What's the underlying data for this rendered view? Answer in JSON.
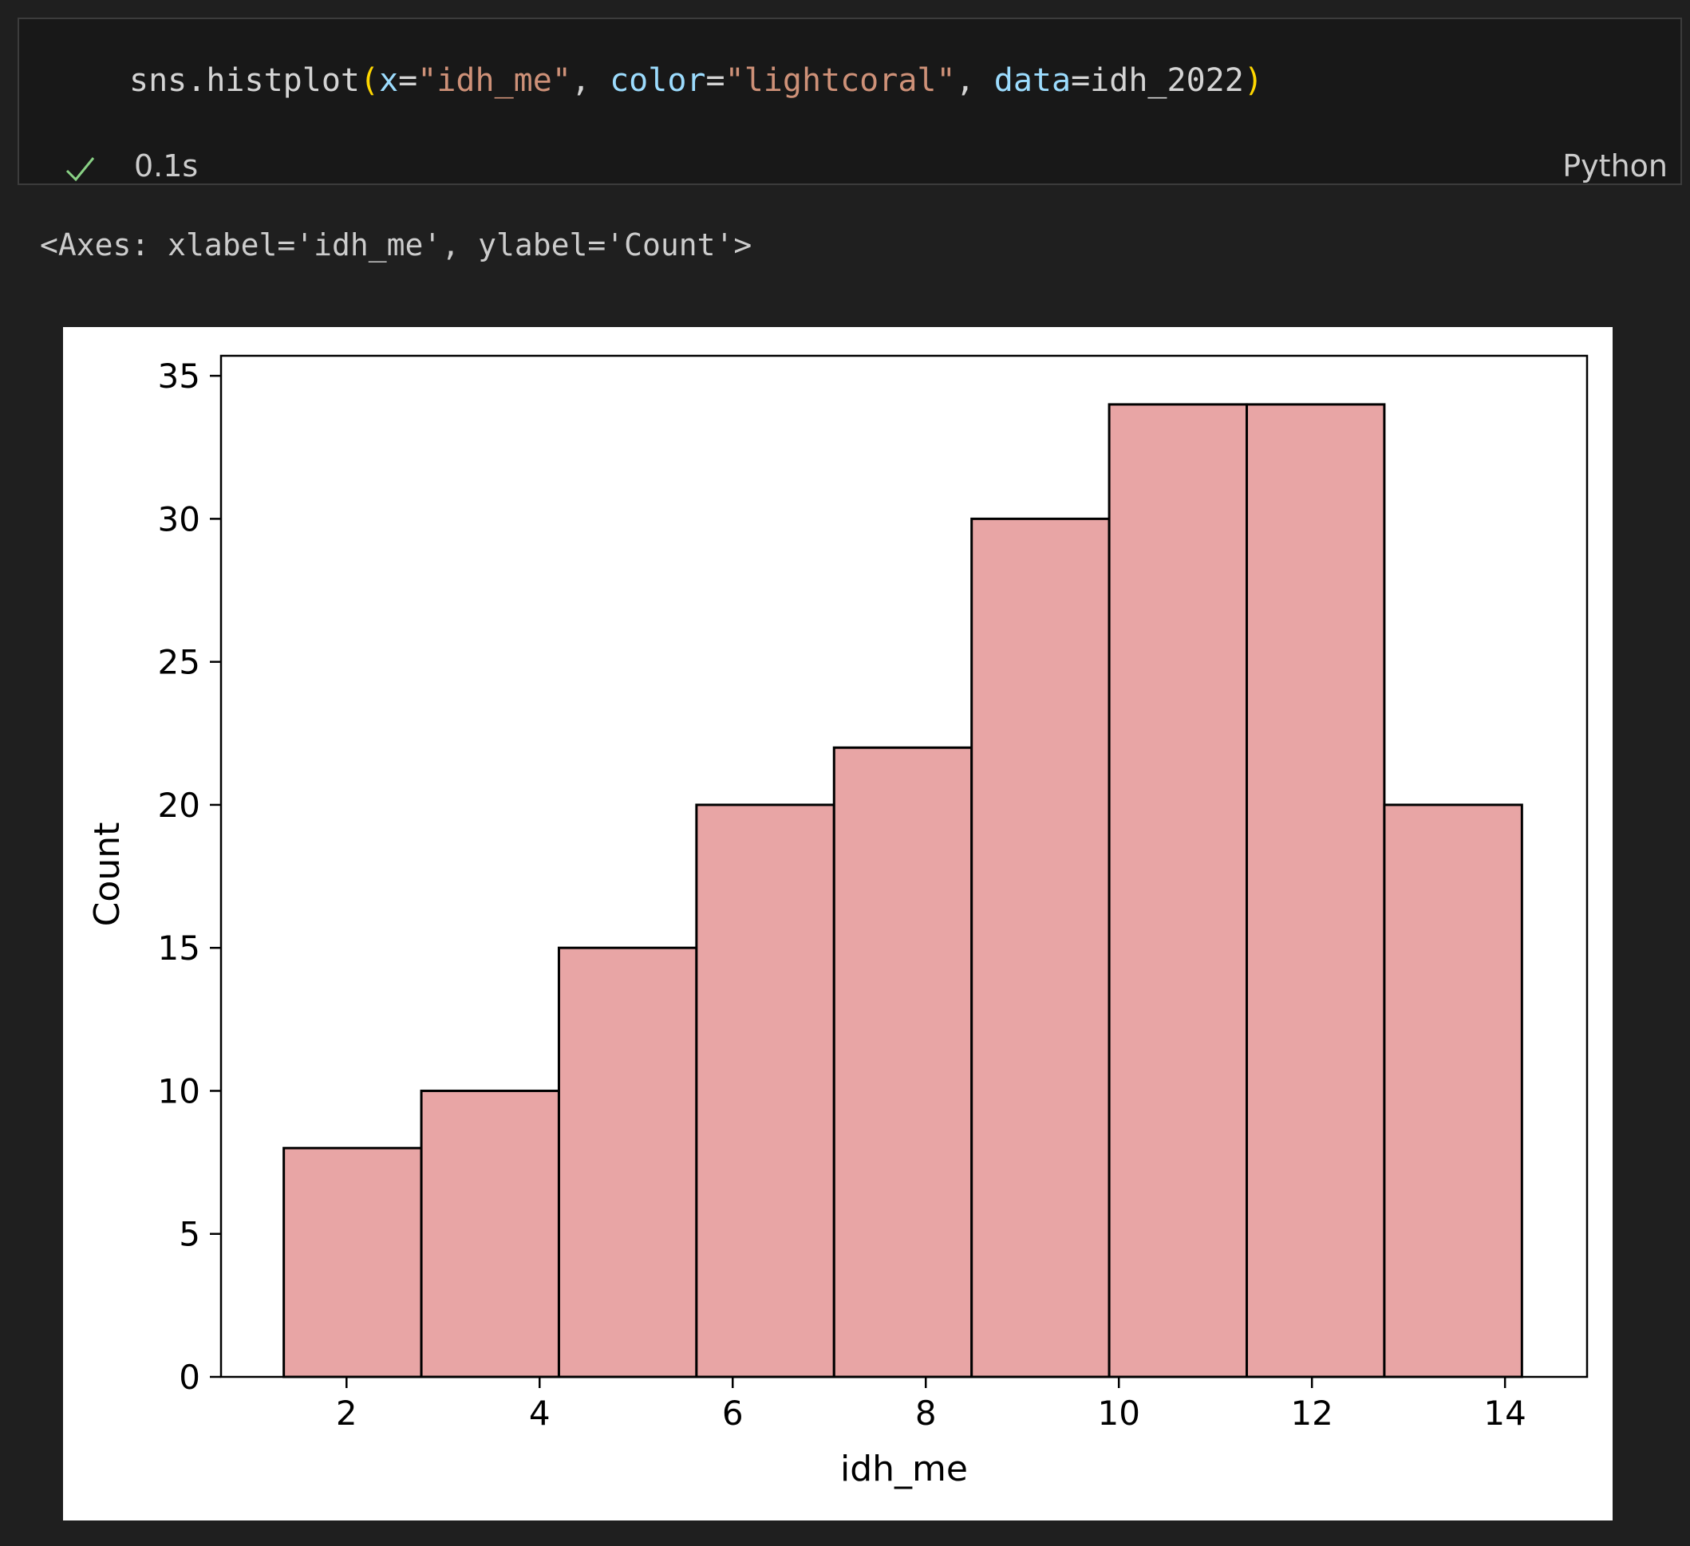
{
  "cell": {
    "code": [
      {
        "text": "sns.histplot",
        "kind": "default"
      },
      {
        "text": "(",
        "kind": "paren"
      },
      {
        "text": "x",
        "kind": "param"
      },
      {
        "text": "=",
        "kind": "default"
      },
      {
        "text": "\"idh_me\"",
        "kind": "string"
      },
      {
        "text": ", ",
        "kind": "default"
      },
      {
        "text": "color",
        "kind": "param"
      },
      {
        "text": "=",
        "kind": "default"
      },
      {
        "text": "\"lightcoral\"",
        "kind": "string"
      },
      {
        "text": ", ",
        "kind": "default"
      },
      {
        "text": "data",
        "kind": "param"
      },
      {
        "text": "=idh_2022",
        "kind": "default"
      },
      {
        "text": ")",
        "kind": "paren"
      }
    ],
    "status": {
      "icon": "check-icon",
      "icon_color": "#89d185",
      "exec_time": "0.1s",
      "language": "Python"
    }
  },
  "output": {
    "text": "<Axes: xlabel='idh_me', ylabel='Count'>"
  },
  "chart_data": {
    "type": "bar",
    "histogram": true,
    "bin_edges": [
      1.35,
      2.775,
      4.2,
      5.625,
      7.05,
      8.475,
      9.9,
      11.325,
      12.75,
      14.175
    ],
    "values": [
      8,
      10,
      15,
      20,
      22,
      30,
      34,
      34,
      20
    ],
    "xlabel": "idh_me",
    "ylabel": "Count",
    "xlim": [
      0.7,
      14.85
    ],
    "ylim": [
      0,
      35.7
    ],
    "xticks": [
      2,
      4,
      6,
      8,
      10,
      12,
      14
    ],
    "yticks": [
      0,
      5,
      10,
      15,
      20,
      25,
      30,
      35
    ],
    "bar_color": "#e8a5a5",
    "edge_color": "#000000",
    "grid": false
  }
}
